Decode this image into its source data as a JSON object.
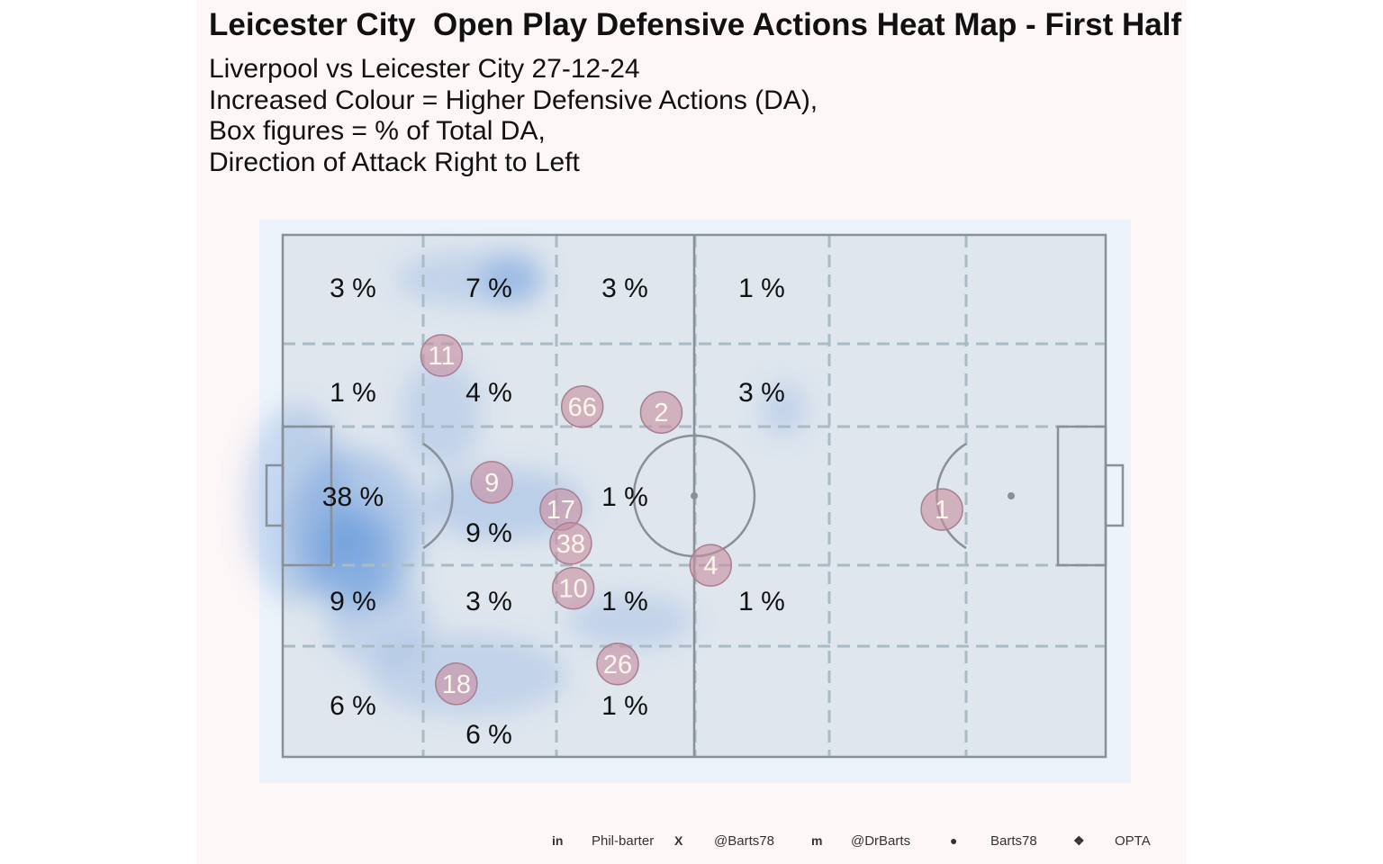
{
  "title": "Leicester City  Open Play Defensive Actions Heat Map - First Half",
  "subtitle_lines": [
    "Liverpool vs Leicester City 27-12-24",
    "Increased Colour = Higher Defensive Actions (DA),",
    "Box figures = % of Total DA,",
    "Direction of Attack Right to Left"
  ],
  "footer": [
    {
      "icon": "linkedin-icon",
      "glyph": "in",
      "label": "Phil-barter"
    },
    {
      "icon": "x-twitter-icon",
      "glyph": "X",
      "label": "@Barts78"
    },
    {
      "icon": "mastodon-icon",
      "glyph": "m",
      "label": "@DrBarts"
    },
    {
      "icon": "github-icon",
      "glyph": "●",
      "label": "Barts78"
    },
    {
      "icon": "dropbox-icon",
      "glyph": "❖",
      "label": "OPTA"
    }
  ],
  "chart_data": {
    "type": "heatmap",
    "title": "Leicester City  Open Play Defensive Actions Heat Map - First Half",
    "grid_unit": "% of Total DA",
    "columns": 6,
    "rows": 5,
    "cell_percentages": [
      [
        "3 %",
        "7 %",
        "3 %",
        "1 %",
        "",
        ""
      ],
      [
        "1 %",
        "4 %",
        "",
        "3 %",
        "",
        ""
      ],
      [
        "38 %",
        "9 %",
        "1 %",
        "",
        "",
        ""
      ],
      [
        "9 %",
        "3 %",
        "1 %",
        "1 %",
        "",
        ""
      ],
      [
        "6 %",
        "6 %",
        "1 %",
        "",
        "",
        ""
      ]
    ],
    "players": [
      {
        "number": "11",
        "x": 19.3,
        "y": 23.1
      },
      {
        "number": "66",
        "x": 36.4,
        "y": 32.9
      },
      {
        "number": "2",
        "x": 46.0,
        "y": 34.0
      },
      {
        "number": "9",
        "x": 25.4,
        "y": 47.4
      },
      {
        "number": "17",
        "x": 33.8,
        "y": 52.6
      },
      {
        "number": "38",
        "x": 35.0,
        "y": 59.1
      },
      {
        "number": "10",
        "x": 35.3,
        "y": 67.7
      },
      {
        "number": "4",
        "x": 52.0,
        "y": 63.3
      },
      {
        "number": "26",
        "x": 40.7,
        "y": 82.2
      },
      {
        "number": "18",
        "x": 21.1,
        "y": 86.0
      },
      {
        "number": "1",
        "x": 80.1,
        "y": 52.6
      }
    ],
    "colors": {
      "pitch": "#dfe6ee",
      "surround": "#edf3fa",
      "heat": "#4a86d8",
      "player": "#c98ea0",
      "lines": "#8a9099",
      "grid": "#a9bcc6"
    }
  }
}
